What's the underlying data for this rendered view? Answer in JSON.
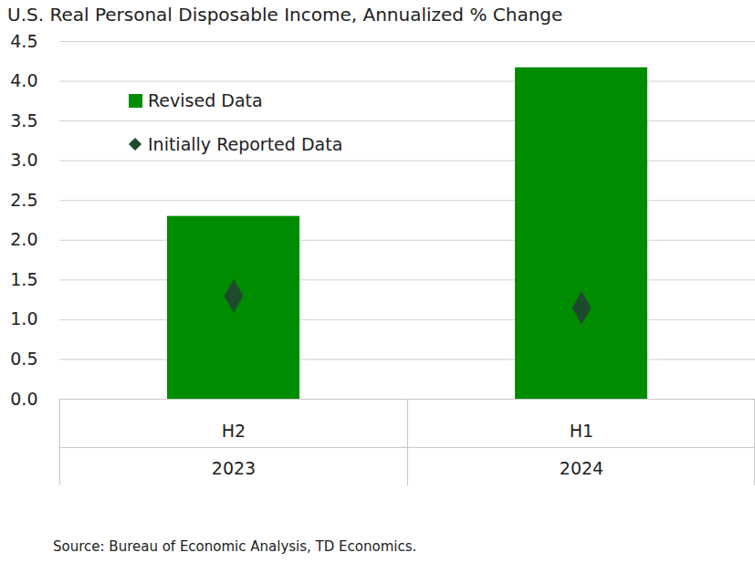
{
  "chart_data": {
    "type": "bar",
    "title": "U.S. Real Personal Disposable Income, Annualized % Change",
    "caption": "Source: Bureau of Economic Analysis, TD Economics.",
    "categories": [
      "H2",
      "H1"
    ],
    "category_groups": [
      "2023",
      "2024"
    ],
    "series": [
      {
        "name": "Revised Data",
        "type": "bar",
        "color": "#008c00",
        "values": [
          2.3,
          4.17
        ]
      },
      {
        "name": "Initially Reported Data",
        "type": "scatter",
        "marker": "diamond",
        "color": "#1d4a2c",
        "values": [
          1.3,
          1.15
        ]
      }
    ],
    "ylim": [
      0,
      4.5
    ],
    "yticks": [
      {
        "value": 0,
        "label": "0.0"
      },
      0.5,
      {
        "value": 1,
        "label": "1.0"
      },
      1.5,
      {
        "value": 2,
        "label": "2.0"
      },
      2.5,
      {
        "value": 3,
        "label": "3.0"
      },
      3.5,
      {
        "value": 4,
        "label": "4.0"
      },
      4.5
    ],
    "grid": true,
    "legend": "upper left"
  }
}
